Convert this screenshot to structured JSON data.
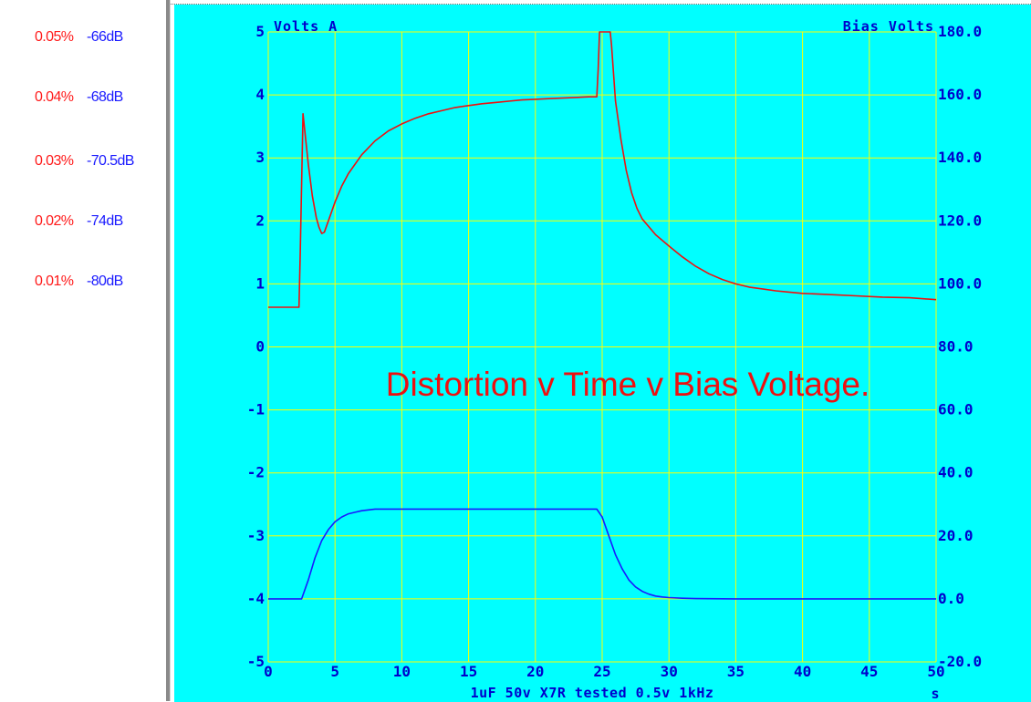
{
  "legend": [
    {
      "percent": "0.05%",
      "db": "-66dB"
    },
    {
      "percent": "0.04%",
      "db": "-68dB"
    },
    {
      "percent": "0.03%",
      "db": "-70.5dB"
    },
    {
      "percent": "0.02%",
      "db": "-74dB"
    },
    {
      "percent": "0.01%",
      "db": "-80dB"
    }
  ],
  "chart_data": {
    "type": "line",
    "title": "Distortion v Time v Bias Voltage.",
    "subtitle": "1uF 50v X7R tested 0.5v 1kHz",
    "xlabel": "s",
    "ylabel_left": "Volts A",
    "ylabel_right": "Bias Volts",
    "xlim": [
      0,
      50
    ],
    "ylim_left": [
      -5,
      5
    ],
    "ylim_right": [
      -20,
      180
    ],
    "x_ticks": [
      "0",
      "5",
      "10",
      "15",
      "20",
      "25",
      "30",
      "35",
      "40",
      "45",
      "50"
    ],
    "y_ticks_left": [
      "5",
      "4",
      "3",
      "2",
      "1",
      "0",
      "-1",
      "-2",
      "-3",
      "-4",
      "-5"
    ],
    "y_ticks_right": [
      "180.0",
      "160.0",
      "140.0",
      "120.0",
      "100.0",
      "80.0",
      "60.0",
      "40.0",
      "20.0",
      "0.0",
      "-20.0"
    ],
    "grid": true,
    "colors": {
      "background": "#00ffff",
      "grid": "#ffff00",
      "distortion": "#ee1010",
      "bias": "#1a1aff",
      "axis_text": "#0000cc"
    },
    "series": [
      {
        "axis": "left",
        "color": "#ee1010",
        "x": [
          0,
          2.3,
          2.4,
          2.6,
          2.8,
          3,
          3.3,
          3.6,
          3.8,
          4,
          4.2,
          4.5,
          5,
          5.5,
          6,
          7,
          8,
          9,
          10,
          11,
          12,
          13,
          14,
          15,
          16,
          17,
          18,
          19,
          20,
          21,
          22,
          23,
          24,
          24.6,
          24.7,
          24.8,
          25.6,
          25.7,
          26,
          26.4,
          26.8,
          27.2,
          27.6,
          28,
          29,
          30,
          31,
          32,
          33,
          34,
          35,
          36,
          37,
          38,
          39,
          40,
          42,
          44,
          46,
          48,
          50
        ],
        "y": [
          0.63,
          0.63,
          1.5,
          3.7,
          3.3,
          2.9,
          2.4,
          2.05,
          1.9,
          1.8,
          1.82,
          2.0,
          2.3,
          2.55,
          2.75,
          3.05,
          3.27,
          3.43,
          3.54,
          3.63,
          3.7,
          3.75,
          3.8,
          3.83,
          3.86,
          3.88,
          3.9,
          3.92,
          3.93,
          3.94,
          3.95,
          3.96,
          3.97,
          3.97,
          4.4,
          5.0,
          5.0,
          4.8,
          3.9,
          3.3,
          2.8,
          2.45,
          2.2,
          2.03,
          1.78,
          1.6,
          1.43,
          1.28,
          1.16,
          1.07,
          1.0,
          0.95,
          0.92,
          0.89,
          0.87,
          0.85,
          0.83,
          0.81,
          0.79,
          0.78,
          0.75
        ]
      },
      {
        "axis": "right",
        "color": "#1a1aff",
        "x": [
          0,
          2.5,
          3,
          3.5,
          4,
          4.5,
          5,
          5.5,
          6,
          6.5,
          7,
          8,
          10,
          15,
          20,
          24.6,
          25,
          25.5,
          26,
          26.5,
          27,
          27.5,
          28,
          28.5,
          29,
          29.5,
          30,
          31,
          32,
          35,
          40,
          45,
          50
        ],
        "y": [
          0,
          0,
          6,
          13,
          18.5,
          22,
          24.5,
          26,
          27,
          27.5,
          28,
          28.5,
          28.5,
          28.5,
          28.5,
          28.5,
          26,
          20,
          14,
          9.5,
          6,
          3.8,
          2.4,
          1.5,
          0.9,
          0.6,
          0.4,
          0.2,
          0.1,
          0,
          0,
          0,
          0
        ]
      }
    ]
  }
}
